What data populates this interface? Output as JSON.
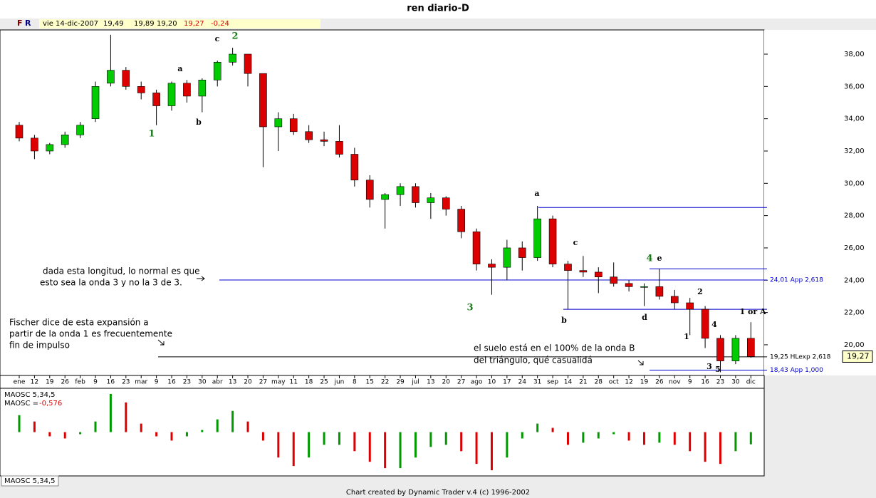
{
  "chart_data": {
    "type": "candlestick",
    "title": "ren diario-D",
    "toolbar": {
      "f": "F",
      "r": "R",
      "date": "vie 14-dic-2007",
      "open": "19,49",
      "high": "19,89",
      "low": "19,20",
      "close": "19,27",
      "change": "-0,24"
    },
    "categories": [
      "ene",
      "12",
      "19",
      "26",
      "feb",
      "9",
      "16",
      "23",
      "mar",
      "9",
      "16",
      "23",
      "30",
      "abr",
      "13",
      "20",
      "27",
      "may",
      "11",
      "18",
      "25",
      "jun",
      "8",
      "15",
      "22",
      "29",
      "jul",
      "13",
      "20",
      "27",
      "ago",
      "10",
      "17",
      "24",
      "31",
      "sep",
      "14",
      "21",
      "28",
      "oct",
      "12",
      "19",
      "26",
      "nov",
      "9",
      "16",
      "23",
      "30",
      "dic"
    ],
    "open": [
      33.6,
      32.8,
      32.0,
      32.4,
      33.0,
      34.0,
      36.2,
      37.0,
      36.0,
      35.6,
      34.8,
      36.2,
      35.4,
      36.4,
      37.5,
      38.0,
      36.8,
      33.5,
      34.0,
      33.2,
      32.7,
      32.6,
      31.8,
      30.2,
      29.0,
      29.3,
      29.8,
      28.8,
      29.1,
      28.4,
      27.0,
      25.0,
      24.8,
      26.0,
      25.4,
      27.8,
      25.0,
      24.6,
      24.5,
      24.2,
      23.8,
      23.6,
      23.6,
      23.0,
      22.6,
      22.2,
      20.4,
      19.0,
      20.4
    ],
    "high": [
      33.8,
      33.0,
      32.5,
      33.2,
      33.8,
      36.3,
      39.2,
      37.2,
      36.3,
      35.8,
      36.3,
      36.4,
      36.5,
      37.6,
      38.4,
      38.0,
      36.8,
      34.4,
      34.3,
      33.6,
      33.2,
      33.6,
      32.2,
      30.5,
      29.4,
      30.0,
      30.0,
      29.4,
      29.2,
      28.6,
      27.2,
      25.3,
      26.5,
      26.4,
      28.6,
      28.0,
      25.2,
      25.5,
      24.8,
      25.1,
      24.0,
      23.8,
      24.7,
      23.4,
      22.9,
      22.4,
      20.6,
      20.6,
      21.4
    ],
    "low": [
      32.6,
      31.5,
      31.8,
      32.2,
      32.8,
      33.8,
      36.0,
      35.8,
      35.2,
      33.6,
      34.5,
      35.0,
      34.4,
      36.0,
      37.3,
      36.0,
      31.0,
      32.0,
      33.0,
      32.5,
      32.3,
      31.6,
      29.8,
      28.5,
      27.2,
      28.6,
      28.5,
      27.8,
      28.0,
      26.6,
      24.6,
      23.1,
      24.0,
      24.6,
      25.2,
      24.8,
      22.2,
      24.2,
      23.2,
      23.6,
      23.3,
      22.4,
      22.8,
      22.2,
      20.6,
      19.8,
      18.3,
      18.8,
      19.2
    ],
    "close": [
      32.8,
      32.0,
      32.4,
      33.0,
      33.6,
      36.0,
      37.0,
      36.0,
      35.6,
      34.8,
      36.2,
      35.4,
      36.4,
      37.5,
      38.0,
      36.8,
      33.5,
      34.0,
      33.2,
      32.7,
      32.6,
      31.8,
      30.2,
      29.0,
      29.3,
      29.8,
      28.8,
      29.1,
      28.4,
      27.0,
      25.0,
      24.8,
      26.0,
      25.4,
      27.8,
      25.0,
      24.6,
      24.5,
      24.2,
      23.8,
      23.6,
      23.6,
      23.0,
      22.6,
      22.2,
      20.4,
      19.0,
      20.4,
      19.27
    ],
    "up_color": "#00cc00",
    "down_color": "#dd0000",
    "ylim": [
      18.1,
      39.5
    ],
    "yticks": [
      {
        "value": 20,
        "label": "20,00"
      },
      {
        "value": 22,
        "label": "22,00"
      },
      {
        "value": 24,
        "label": "24,00"
      },
      {
        "value": 26,
        "label": "26,00"
      },
      {
        "value": 28,
        "label": "28,00"
      },
      {
        "value": 30,
        "label": "30,00"
      },
      {
        "value": 32,
        "label": "32,00"
      },
      {
        "value": 34,
        "label": "34,00"
      },
      {
        "value": 36,
        "label": "36,00"
      },
      {
        "value": 38,
        "label": "38,00"
      }
    ],
    "last_price": {
      "value": 19.27,
      "label": "19,27"
    },
    "levels": [
      {
        "value": 28.5,
        "color": "#0000cc"
      },
      {
        "value": 24.01,
        "label": "24,01 App 2,618",
        "color": "#0000cc"
      },
      {
        "value": 24.7,
        "color": "#0000cc"
      },
      {
        "value": 22.2,
        "color": "#0000cc"
      },
      {
        "value": 19.25,
        "label": "19,25 HLexp 2,618",
        "color": "#000000"
      },
      {
        "value": 18.43,
        "label": "18,43 App 1,000",
        "color": "#0000cc"
      }
    ],
    "wave_labels": [
      "1",
      "a",
      "b",
      "c",
      "2",
      "a",
      "3",
      "b",
      "c",
      "4",
      "e",
      "d",
      "2",
      "1",
      "4",
      "3",
      "5",
      "1 or A"
    ],
    "notes": [
      "dada esta longitud, lo normal es que",
      "esto sea la onda 3 y no la 3 de 3.",
      "Fischer dice de esta expansión a",
      "partir de la onda 1 es frecuentemente",
      "fin de impulso",
      "el suelo está en el 100% de la onda B",
      "del  triángulo, qué casualidá"
    ],
    "oscillator": {
      "name": "MAOSC 5,34,5",
      "value_label": "MAOSC =",
      "value_text": "-0,576",
      "values": [
        0.8,
        0.5,
        -0.2,
        -0.3,
        -0.1,
        0.5,
        1.8,
        1.4,
        0.4,
        -0.2,
        -0.4,
        -0.2,
        0.1,
        0.6,
        1.0,
        0.5,
        -0.4,
        -1.2,
        -1.6,
        -1.2,
        -0.6,
        -0.6,
        -0.9,
        -1.4,
        -1.7,
        -1.7,
        -1.2,
        -0.7,
        -0.6,
        -0.9,
        -1.5,
        -1.8,
        -1.2,
        -0.3,
        0.4,
        0.2,
        -0.6,
        -0.5,
        -0.3,
        -0.1,
        -0.4,
        -0.6,
        -0.5,
        -0.6,
        -0.9,
        -1.4,
        -1.5,
        -0.9,
        -0.576
      ],
      "ylim": [
        -2.0,
        2.0
      ],
      "up_color": "#009900",
      "down_color": "#dd0000"
    },
    "tab": "MAOSC 5,34,5",
    "footer": "Chart created by Dynamic Trader v.4  (c)  1996-2002"
  }
}
